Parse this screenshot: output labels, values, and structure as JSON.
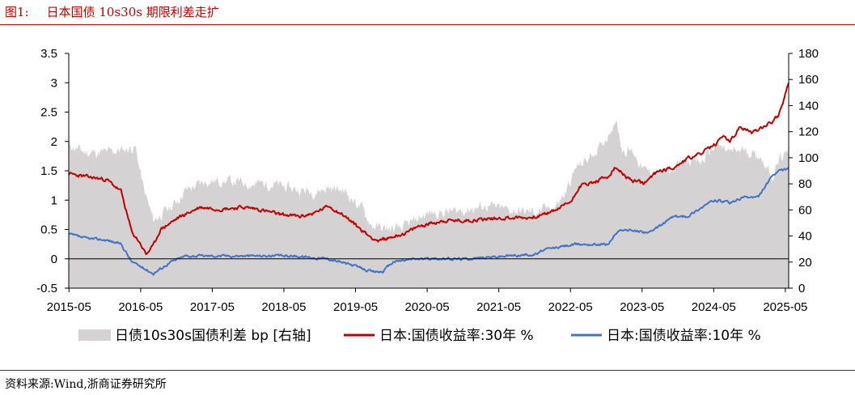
{
  "header": {
    "figure_number": "图1:",
    "title": "日本国债 10s30s 期限利差走扩"
  },
  "footer": {
    "source": "资料来源:Wind,浙商证券研究所"
  },
  "colors": {
    "title_red": "#c00000",
    "spread_gray": "#d4d2d3",
    "yield30_red": "#c00000",
    "yield10_blue": "#4472c4"
  },
  "chart_data": {
    "type": "line",
    "x_tick_labels": [
      "2015-05",
      "2016-05",
      "2017-05",
      "2018-05",
      "2019-05",
      "2020-05",
      "2021-05",
      "2022-05",
      "2023-05",
      "2024-05",
      "2025-05"
    ],
    "x_range": [
      2015.37,
      2025.42
    ],
    "y_left": {
      "range": [
        -0.5,
        3.5
      ],
      "ticks": [
        -0.5,
        0,
        0.5,
        1,
        1.5,
        2,
        2.5,
        3,
        3.5
      ],
      "tick_labels": [
        "-0.5",
        "0",
        "0.5",
        "1",
        "1.5",
        "2",
        "2.5",
        "3",
        "3.5"
      ]
    },
    "y_right": {
      "range": [
        0,
        180
      ],
      "ticks": [
        0,
        20,
        40,
        60,
        80,
        100,
        120,
        140,
        160,
        180
      ],
      "tick_labels": [
        "0",
        "20",
        "40",
        "60",
        "80",
        "100",
        "120",
        "140",
        "160",
        "180"
      ]
    },
    "legend": [
      "日债10s30s国债利差 bp [右轴]",
      "日本:国债收益率:30年 %",
      "日本:国债收益率:10年 %"
    ],
    "series": [
      {
        "name": "日债10s30s国债利差 bp [右轴]",
        "axis": "right",
        "style": "area",
        "x": [
          2015.37,
          2015.6,
          2015.9,
          2016.1,
          2016.3,
          2016.42,
          2016.55,
          2016.8,
          2017.0,
          2017.3,
          2017.6,
          2017.9,
          2018.2,
          2018.5,
          2018.8,
          2019.0,
          2019.2,
          2019.45,
          2019.6,
          2019.8,
          2020.0,
          2020.15,
          2020.3,
          2020.45,
          2020.6,
          2020.9,
          2021.2,
          2021.5,
          2021.8,
          2022.0,
          2022.15,
          2022.3,
          2022.45,
          2022.6,
          2022.7,
          2022.8,
          2022.9,
          2023.0,
          2023.1,
          2023.25,
          2023.4,
          2023.6,
          2023.8,
          2024.0,
          2024.2,
          2024.4,
          2024.6,
          2024.8,
          2025.0,
          2025.1,
          2025.2,
          2025.3,
          2025.42
        ],
        "values": [
          110,
          104,
          104,
          106,
          108,
          75,
          52,
          62,
          75,
          82,
          82,
          80,
          80,
          76,
          74,
          77,
          75,
          62,
          48,
          45,
          45,
          50,
          55,
          58,
          58,
          60,
          63,
          60,
          58,
          60,
          62,
          72,
          92,
          98,
          104,
          108,
          118,
          130,
          106,
          105,
          90,
          88,
          90,
          100,
          96,
          110,
          104,
          106,
          102,
          95,
          85,
          100,
          102
        ]
      },
      {
        "name": "日本:国债收益率:30年 %",
        "axis": "left",
        "style": "line",
        "x": [
          2015.37,
          2015.6,
          2015.9,
          2016.1,
          2016.25,
          2016.35,
          2016.45,
          2016.55,
          2016.65,
          2016.9,
          2017.2,
          2017.5,
          2017.8,
          2018.0,
          2018.3,
          2018.6,
          2018.8,
          2019.0,
          2019.2,
          2019.4,
          2019.55,
          2019.7,
          2019.9,
          2020.1,
          2020.25,
          2020.4,
          2020.6,
          2020.9,
          2021.2,
          2021.5,
          2021.8,
          2022.0,
          2022.2,
          2022.4,
          2022.5,
          2022.7,
          2022.9,
          2023.0,
          2023.2,
          2023.4,
          2023.6,
          2023.8,
          2024.0,
          2024.2,
          2024.4,
          2024.5,
          2024.6,
          2024.75,
          2024.9,
          2025.1,
          2025.2,
          2025.28,
          2025.35,
          2025.42
        ],
        "values": [
          1.45,
          1.4,
          1.35,
          1.15,
          0.45,
          0.3,
          0.08,
          0.22,
          0.5,
          0.7,
          0.88,
          0.85,
          0.88,
          0.85,
          0.76,
          0.72,
          0.78,
          0.9,
          0.75,
          0.55,
          0.4,
          0.3,
          0.38,
          0.45,
          0.55,
          0.6,
          0.65,
          0.65,
          0.68,
          0.7,
          0.7,
          0.75,
          0.85,
          1.0,
          1.25,
          1.3,
          1.4,
          1.55,
          1.35,
          1.28,
          1.5,
          1.55,
          1.7,
          1.8,
          1.95,
          2.1,
          2.0,
          2.25,
          2.15,
          2.28,
          2.35,
          2.45,
          2.7,
          3.0
        ]
      },
      {
        "name": "日本:国债收益率:10年 %",
        "axis": "left",
        "style": "line",
        "x": [
          2015.37,
          2015.6,
          2015.9,
          2016.1,
          2016.25,
          2016.4,
          2016.55,
          2016.8,
          2017.0,
          2017.5,
          2018.0,
          2018.5,
          2019.0,
          2019.3,
          2019.6,
          2019.75,
          2019.9,
          2020.2,
          2020.5,
          2020.9,
          2021.5,
          2021.9,
          2022.0,
          2022.3,
          2022.5,
          2022.9,
          2023.0,
          2023.1,
          2023.5,
          2023.8,
          2024.0,
          2024.3,
          2024.4,
          2024.6,
          2024.8,
          2025.0,
          2025.1,
          2025.2,
          2025.3,
          2025.42
        ],
        "values": [
          0.42,
          0.35,
          0.32,
          0.25,
          -0.05,
          -0.15,
          -0.25,
          -0.05,
          0.05,
          0.05,
          0.05,
          0.05,
          0.0,
          -0.1,
          -0.22,
          -0.22,
          -0.05,
          0.0,
          0.0,
          0.0,
          0.05,
          0.08,
          0.15,
          0.22,
          0.25,
          0.25,
          0.42,
          0.5,
          0.45,
          0.72,
          0.72,
          0.95,
          1.0,
          0.95,
          1.05,
          1.05,
          1.25,
          1.42,
          1.5,
          1.55
        ]
      }
    ]
  }
}
